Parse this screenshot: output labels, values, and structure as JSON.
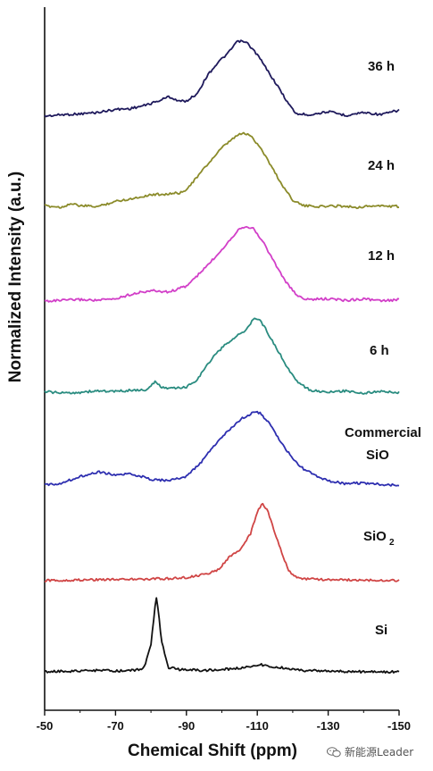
{
  "chart_data": {
    "type": "line",
    "xlabel": "Chemical Shift (ppm)",
    "ylabel": "Normalized Intensity (a.u.)",
    "xlim": [
      -50,
      -150
    ],
    "x_ticks": [
      -50,
      -70,
      -90,
      -110,
      -130,
      -150
    ],
    "stacked": true,
    "series": [
      {
        "name": "36 h",
        "label_lines": [
          "36 h"
        ],
        "color": "#1f1a5c",
        "points": [
          [
            -50,
            0.0
          ],
          [
            -55,
            0.02
          ],
          [
            -60,
            0.03
          ],
          [
            -65,
            0.05
          ],
          [
            -70,
            0.09
          ],
          [
            -74,
            0.1
          ],
          [
            -78,
            0.14
          ],
          [
            -82,
            0.2
          ],
          [
            -85,
            0.26
          ],
          [
            -88,
            0.2
          ],
          [
            -90,
            0.2
          ],
          [
            -93,
            0.3
          ],
          [
            -96,
            0.55
          ],
          [
            -99,
            0.72
          ],
          [
            -102,
            0.85
          ],
          [
            -104,
            0.98
          ],
          [
            -105,
            1.0
          ],
          [
            -107,
            0.98
          ],
          [
            -110,
            0.82
          ],
          [
            -113,
            0.6
          ],
          [
            -116,
            0.38
          ],
          [
            -119,
            0.15
          ],
          [
            -121,
            0.03
          ],
          [
            -125,
            0.02
          ],
          [
            -130,
            0.06
          ],
          [
            -135,
            0.01
          ],
          [
            -140,
            0.05
          ],
          [
            -145,
            0.02
          ],
          [
            -150,
            0.08
          ]
        ]
      },
      {
        "name": "24 h",
        "label_lines": [
          "24 h"
        ],
        "color": "#8b8b2a",
        "points": [
          [
            -50,
            0.02
          ],
          [
            -55,
            0.0
          ],
          [
            -57,
            0.05
          ],
          [
            -60,
            0.02
          ],
          [
            -65,
            0.01
          ],
          [
            -70,
            0.08
          ],
          [
            -75,
            0.12
          ],
          [
            -80,
            0.17
          ],
          [
            -85,
            0.18
          ],
          [
            -89,
            0.2
          ],
          [
            -92,
            0.35
          ],
          [
            -96,
            0.58
          ],
          [
            -100,
            0.8
          ],
          [
            -104,
            0.96
          ],
          [
            -106,
            1.0
          ],
          [
            -108,
            0.97
          ],
          [
            -111,
            0.8
          ],
          [
            -114,
            0.55
          ],
          [
            -117,
            0.3
          ],
          [
            -120,
            0.1
          ],
          [
            -123,
            0.02
          ],
          [
            -128,
            0.01
          ],
          [
            -133,
            0.02
          ],
          [
            -138,
            0.0
          ],
          [
            -143,
            0.02
          ],
          [
            -150,
            0.01
          ]
        ]
      },
      {
        "name": "12 h",
        "label_lines": [
          "12 h"
        ],
        "color": "#d23fc8",
        "points": [
          [
            -50,
            0.0
          ],
          [
            -55,
            0.01
          ],
          [
            -60,
            0.02
          ],
          [
            -65,
            0.01
          ],
          [
            -70,
            0.03
          ],
          [
            -75,
            0.1
          ],
          [
            -80,
            0.14
          ],
          [
            -85,
            0.12
          ],
          [
            -90,
            0.2
          ],
          [
            -94,
            0.38
          ],
          [
            -98,
            0.58
          ],
          [
            -102,
            0.8
          ],
          [
            -105,
            0.97
          ],
          [
            -107,
            1.0
          ],
          [
            -109,
            0.96
          ],
          [
            -112,
            0.76
          ],
          [
            -115,
            0.5
          ],
          [
            -118,
            0.26
          ],
          [
            -121,
            0.08
          ],
          [
            -124,
            0.02
          ],
          [
            -130,
            0.03
          ],
          [
            -135,
            0.01
          ],
          [
            -140,
            0.03
          ],
          [
            -145,
            0.0
          ],
          [
            -150,
            0.02
          ]
        ]
      },
      {
        "name": "6 h",
        "label_lines": [
          "6 h"
        ],
        "color": "#2a8c80",
        "points": [
          [
            -50,
            0.02
          ],
          [
            -55,
            0.0
          ],
          [
            -60,
            0.01
          ],
          [
            -65,
            0.03
          ],
          [
            -70,
            0.02
          ],
          [
            -75,
            0.04
          ],
          [
            -79,
            0.04
          ],
          [
            -81,
            0.15
          ],
          [
            -83,
            0.08
          ],
          [
            -86,
            0.06
          ],
          [
            -90,
            0.08
          ],
          [
            -93,
            0.18
          ],
          [
            -97,
            0.45
          ],
          [
            -101,
            0.65
          ],
          [
            -104,
            0.75
          ],
          [
            -107,
            0.85
          ],
          [
            -109,
            1.0
          ],
          [
            -111,
            0.96
          ],
          [
            -113,
            0.8
          ],
          [
            -116,
            0.55
          ],
          [
            -119,
            0.3
          ],
          [
            -122,
            0.12
          ],
          [
            -125,
            0.04
          ],
          [
            -130,
            0.01
          ],
          [
            -135,
            0.03
          ],
          [
            -140,
            0.0
          ],
          [
            -145,
            0.02
          ],
          [
            -150,
            0.01
          ]
        ]
      },
      {
        "name": "Commercial SiO",
        "label_lines": [
          "Commercial",
          "SiO"
        ],
        "color": "#2e2fb0",
        "points": [
          [
            -50,
            0.0
          ],
          [
            -55,
            0.03
          ],
          [
            -60,
            0.12
          ],
          [
            -65,
            0.18
          ],
          [
            -70,
            0.14
          ],
          [
            -75,
            0.15
          ],
          [
            -80,
            0.08
          ],
          [
            -85,
            0.06
          ],
          [
            -90,
            0.12
          ],
          [
            -94,
            0.3
          ],
          [
            -98,
            0.55
          ],
          [
            -102,
            0.75
          ],
          [
            -106,
            0.92
          ],
          [
            -109,
            1.0
          ],
          [
            -111,
            0.98
          ],
          [
            -114,
            0.8
          ],
          [
            -117,
            0.56
          ],
          [
            -120,
            0.36
          ],
          [
            -123,
            0.22
          ],
          [
            -126,
            0.14
          ],
          [
            -130,
            0.06
          ],
          [
            -135,
            0.02
          ],
          [
            -140,
            0.03
          ],
          [
            -145,
            0.01
          ],
          [
            -150,
            0.0
          ]
        ]
      },
      {
        "name": "SiO2",
        "label_main": "SiO",
        "label_sub": "2",
        "color": "#d04545",
        "points": [
          [
            -50,
            0.0
          ],
          [
            -60,
            0.01
          ],
          [
            -70,
            0.02
          ],
          [
            -80,
            0.02
          ],
          [
            -90,
            0.04
          ],
          [
            -95,
            0.08
          ],
          [
            -99,
            0.14
          ],
          [
            -102,
            0.3
          ],
          [
            -105,
            0.4
          ],
          [
            -108,
            0.6
          ],
          [
            -110,
            0.9
          ],
          [
            -111.5,
            1.0
          ],
          [
            -113,
            0.9
          ],
          [
            -115,
            0.62
          ],
          [
            -117,
            0.35
          ],
          [
            -119,
            0.12
          ],
          [
            -121,
            0.04
          ],
          [
            -125,
            0.02
          ],
          [
            -130,
            0.01
          ],
          [
            -140,
            0.01
          ],
          [
            -150,
            0.0
          ]
        ]
      },
      {
        "name": "Si",
        "label_lines": [
          "Si"
        ],
        "color": "#111111",
        "points": [
          [
            -50,
            0.0
          ],
          [
            -55,
            0.01
          ],
          [
            -60,
            0.01
          ],
          [
            -65,
            0.02
          ],
          [
            -70,
            0.01
          ],
          [
            -75,
            0.02
          ],
          [
            -78,
            0.05
          ],
          [
            -80,
            0.35
          ],
          [
            -81,
            0.8
          ],
          [
            -81.5,
            1.0
          ],
          [
            -82,
            0.85
          ],
          [
            -83,
            0.4
          ],
          [
            -85,
            0.06
          ],
          [
            -88,
            0.03
          ],
          [
            -95,
            0.02
          ],
          [
            -100,
            0.03
          ],
          [
            -105,
            0.05
          ],
          [
            -109,
            0.08
          ],
          [
            -111,
            0.1
          ],
          [
            -113,
            0.07
          ],
          [
            -118,
            0.05
          ],
          [
            -122,
            0.02
          ],
          [
            -130,
            0.01
          ],
          [
            -140,
            0.0
          ],
          [
            -150,
            0.0
          ]
        ]
      }
    ]
  },
  "watermark": {
    "text": "新能源Leader"
  }
}
